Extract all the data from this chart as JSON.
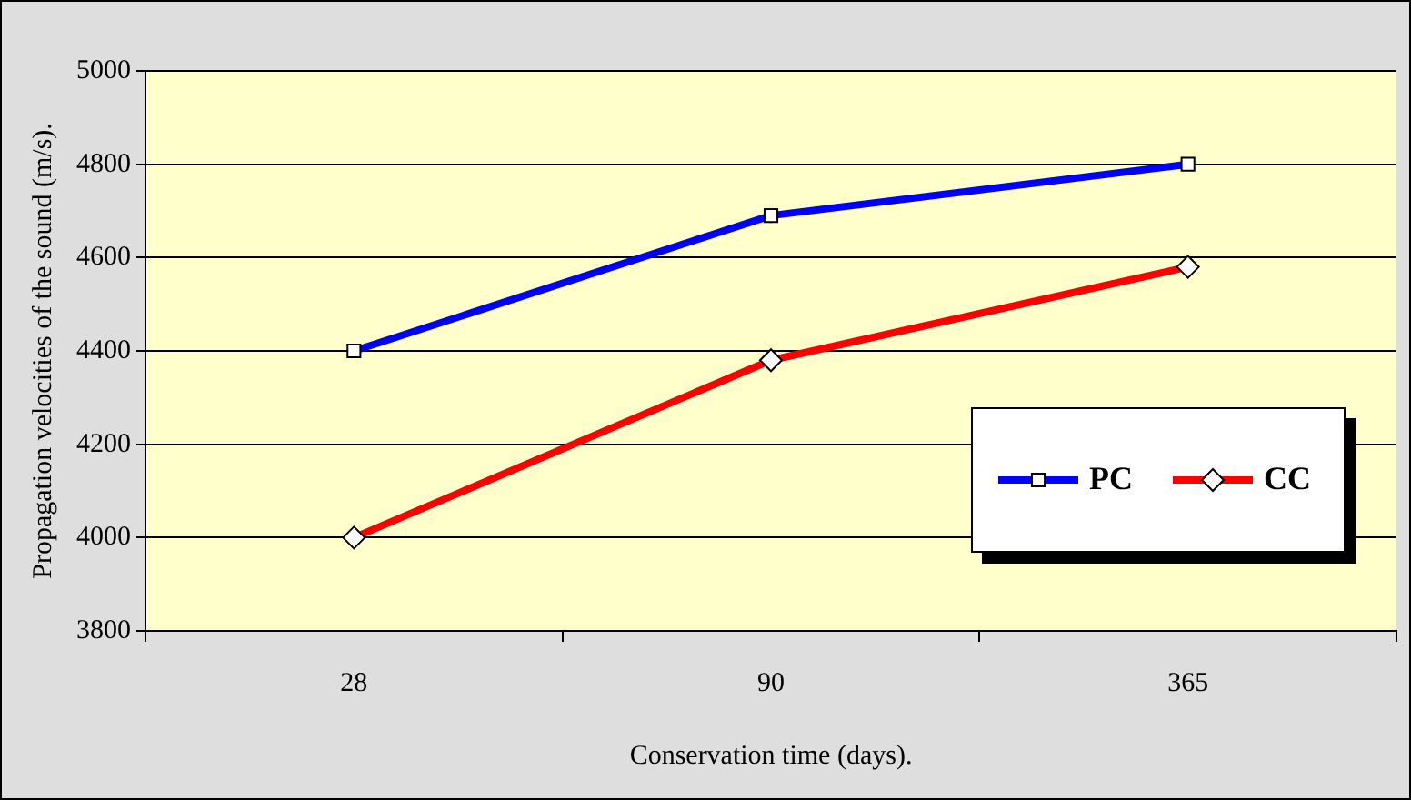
{
  "chart_data": {
    "type": "line",
    "xlabel": "Conservation time (days).",
    "ylabel": "Propagation velocities of the sound (m/s).",
    "categories": [
      "28",
      "90",
      "365"
    ],
    "series": [
      {
        "name": "PC",
        "color": "#0000ff",
        "marker": "square",
        "values": [
          4400,
          4690,
          4800
        ]
      },
      {
        "name": "CC",
        "color": "#ff0000",
        "marker": "diamond",
        "values": [
          4000,
          4380,
          4580
        ]
      }
    ],
    "ylim": [
      3800,
      5000
    ],
    "yticks": [
      3800,
      4000,
      4200,
      4400,
      4600,
      4800,
      5000
    ],
    "grid": "y",
    "legend": "right",
    "line_style": "solid"
  }
}
